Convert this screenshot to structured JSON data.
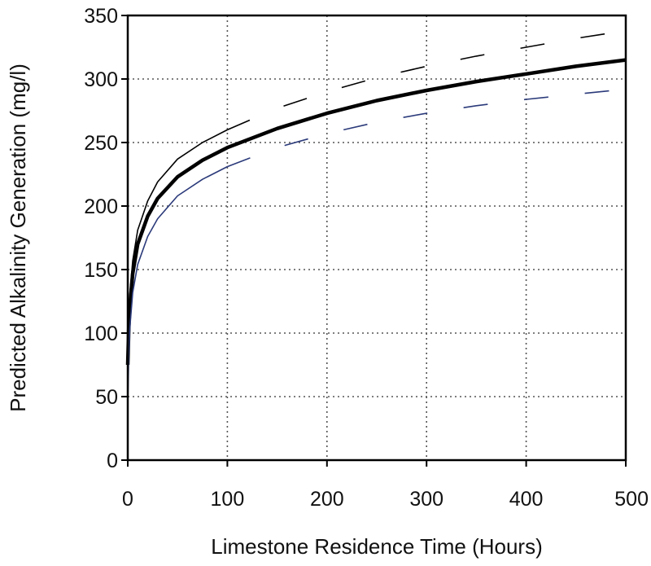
{
  "chart_data": {
    "type": "line",
    "title": "",
    "xlabel": "Limestone Residence Time (Hours)",
    "ylabel": "Predicted Alkalinity Generation (mg/l)",
    "xlim": [
      0,
      500
    ],
    "ylim": [
      0,
      350
    ],
    "xticks": [
      "0",
      "100",
      "200",
      "300",
      "400",
      "500"
    ],
    "yticks": [
      "0",
      "50",
      "100",
      "150",
      "200",
      "250",
      "300",
      "350"
    ],
    "grid": true,
    "legend": "none",
    "series": [
      {
        "style": "solid-thick",
        "color": "#000000",
        "x": [
          0,
          1,
          2,
          5,
          10,
          20,
          30,
          50,
          75,
          100,
          150,
          200,
          250,
          300,
          350,
          400,
          450,
          500
        ],
        "y": [
          75,
          103,
          120,
          147,
          170,
          192,
          206,
          223,
          236,
          246,
          261,
          273,
          283,
          291,
          298,
          304,
          310,
          315
        ]
      },
      {
        "style": "upper-bound",
        "color": "#000000",
        "x": [
          0,
          1,
          2,
          5,
          10,
          20,
          30,
          50,
          75,
          100,
          150,
          200,
          250,
          300,
          350,
          400,
          450,
          500
        ],
        "y": [
          80,
          111,
          129,
          157,
          181,
          204,
          219,
          237,
          250,
          260,
          277,
          290,
          301,
          310,
          318,
          325,
          332,
          338
        ]
      },
      {
        "style": "lower-bound",
        "color": "#2b3a7a",
        "x": [
          0,
          1,
          2,
          5,
          10,
          20,
          30,
          50,
          75,
          100,
          150,
          200,
          250,
          300,
          350,
          400,
          450,
          500
        ],
        "y": [
          43,
          83,
          103,
          132,
          154,
          176,
          190,
          208,
          221,
          231,
          246,
          257,
          266,
          273,
          279,
          284,
          288,
          292
        ]
      }
    ]
  }
}
